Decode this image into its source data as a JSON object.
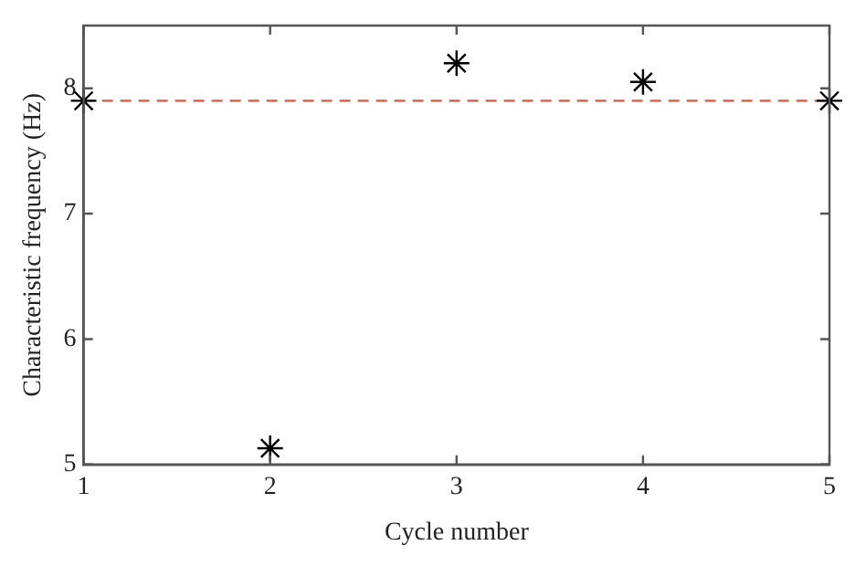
{
  "chart_data": {
    "type": "scatter",
    "xlabel": "Cycle number",
    "ylabel": "Characteristic frequency (Hz)",
    "x": [
      1,
      2,
      3,
      4,
      5
    ],
    "series": [
      {
        "color": "#000000",
        "values": [
          7.9,
          5.13,
          8.2,
          8.05,
          7.9
        ]
      }
    ],
    "xlim": [
      1,
      5
    ],
    "xticks": [
      1,
      2,
      3,
      4,
      5
    ],
    "ylim": [
      5,
      8.5
    ],
    "yticks": [
      5,
      6,
      7,
      8
    ],
    "ref_lines": [
      {
        "axis": "y",
        "value": 7.9,
        "color": "#e0553a",
        "line_style": "dashed"
      }
    ],
    "marker": "cross",
    "grid": false,
    "legend": false
  }
}
